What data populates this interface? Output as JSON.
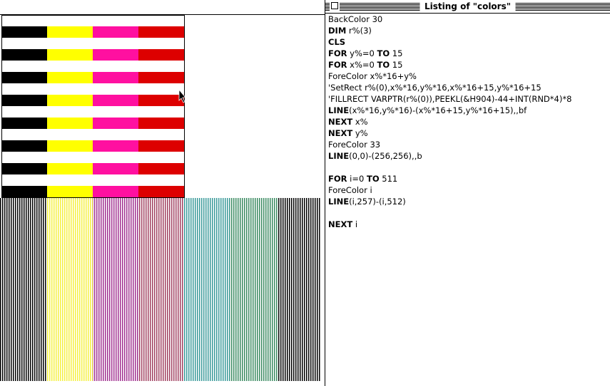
{
  "window_title": "Listing of \"colors\"",
  "listing": [
    [
      [
        {
          "text": "BackColor 30",
          "bold": false
        }
      ],
      [
        {
          "text": "DIM",
          "bold": true
        },
        {
          "text": " r%(3)",
          "bold": false
        }
      ],
      [
        {
          "text": "CLS",
          "bold": true
        }
      ],
      [
        {
          "text": "FOR",
          "bold": true
        },
        {
          "text": " y%=0 ",
          "bold": false
        },
        {
          "text": "TO",
          "bold": true
        },
        {
          "text": " 15",
          "bold": false
        }
      ],
      [
        {
          "text": "FOR",
          "bold": true
        },
        {
          "text": " x%=0 ",
          "bold": false
        },
        {
          "text": "TO",
          "bold": true
        },
        {
          "text": " 15",
          "bold": false
        }
      ],
      [
        {
          "text": "ForeColor x%*16+y%",
          "bold": false
        }
      ],
      [
        {
          "text": "'SetRect r%(0),x%*16,y%*16,x%*16+15,y%*16+15",
          "bold": false
        }
      ],
      [
        {
          "text": "'FILLRECT VARPTR(r%(0)),PEEKL(&H904)-44+INT(RND*4)*8",
          "bold": false
        }
      ],
      [
        {
          "text": "LINE",
          "bold": true
        },
        {
          "text": "(x%*16,y%*16)-(x%*16+15,y%*16+15),,bf",
          "bold": false
        }
      ],
      [
        {
          "text": "NEXT",
          "bold": true
        },
        {
          "text": " x%",
          "bold": false
        }
      ],
      [
        {
          "text": "NEXT",
          "bold": true
        },
        {
          "text": " y%",
          "bold": false
        }
      ],
      [
        {
          "text": "ForeColor 33",
          "bold": false
        }
      ],
      [
        {
          "text": "LINE",
          "bold": true
        },
        {
          "text": "(0,0)-(256,256),,b",
          "bold": false
        }
      ]
    ],
    [
      [
        {
          "text": "FOR",
          "bold": true
        },
        {
          "text": " i=0 ",
          "bold": false
        },
        {
          "text": "TO",
          "bold": true
        },
        {
          "text": " 511",
          "bold": false
        }
      ],
      [
        {
          "text": "ForeColor i",
          "bold": false
        }
      ],
      [
        {
          "text": "LINE",
          "bold": true
        },
        {
          "text": "(i,257)-(i,512)",
          "bold": false
        }
      ]
    ],
    [
      [
        {
          "text": "NEXT",
          "bold": true
        },
        {
          "text": " i",
          "bold": false
        }
      ]
    ]
  ]
}
